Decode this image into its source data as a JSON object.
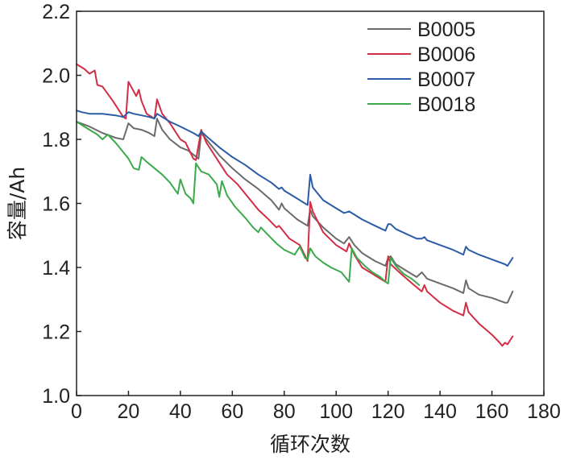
{
  "chart_data": {
    "type": "line",
    "xlabel": "循环次数",
    "ylabel": "容量/Ah",
    "xlim": [
      0,
      180
    ],
    "ylim": [
      1.0,
      2.2
    ],
    "xticks": [
      "0",
      "20",
      "40",
      "60",
      "80",
      "100",
      "120",
      "140",
      "160",
      "180"
    ],
    "yticks": [
      "1.0",
      "1.2",
      "1.4",
      "1.6",
      "1.8",
      "2.0",
      "2.2"
    ],
    "grid": false,
    "legend_position": "top-right",
    "series": [
      {
        "name": "B0005",
        "color": "#6b6b6b",
        "points": [
          [
            0,
            1.855
          ],
          [
            5,
            1.84
          ],
          [
            10,
            1.82
          ],
          [
            15,
            1.805
          ],
          [
            18,
            1.8
          ],
          [
            20,
            1.85
          ],
          [
            22,
            1.835
          ],
          [
            25,
            1.83
          ],
          [
            28,
            1.82
          ],
          [
            30,
            1.81
          ],
          [
            31,
            1.865
          ],
          [
            33,
            1.83
          ],
          [
            36,
            1.8
          ],
          [
            40,
            1.775
          ],
          [
            43,
            1.765
          ],
          [
            47,
            1.74
          ],
          [
            48,
            1.82
          ],
          [
            50,
            1.8
          ],
          [
            55,
            1.75
          ],
          [
            60,
            1.71
          ],
          [
            65,
            1.675
          ],
          [
            70,
            1.645
          ],
          [
            75,
            1.61
          ],
          [
            78,
            1.58
          ],
          [
            79,
            1.6
          ],
          [
            80,
            1.585
          ],
          [
            85,
            1.55
          ],
          [
            89,
            1.53
          ],
          [
            90,
            1.58
          ],
          [
            91,
            1.56
          ],
          [
            95,
            1.525
          ],
          [
            100,
            1.49
          ],
          [
            103,
            1.475
          ],
          [
            105,
            1.495
          ],
          [
            107,
            1.47
          ],
          [
            110,
            1.445
          ],
          [
            115,
            1.42
          ],
          [
            119,
            1.405
          ],
          [
            120,
            1.43
          ],
          [
            121,
            1.435
          ],
          [
            123,
            1.41
          ],
          [
            127,
            1.39
          ],
          [
            131,
            1.37
          ],
          [
            133,
            1.385
          ],
          [
            135,
            1.365
          ],
          [
            140,
            1.35
          ],
          [
            145,
            1.335
          ],
          [
            149,
            1.32
          ],
          [
            150,
            1.36
          ],
          [
            151,
            1.335
          ],
          [
            155,
            1.315
          ],
          [
            160,
            1.305
          ],
          [
            165,
            1.29
          ],
          [
            166,
            1.29
          ],
          [
            168,
            1.325
          ]
        ]
      },
      {
        "name": "B0006",
        "color": "#d12e45",
        "points": [
          [
            0,
            2.035
          ],
          [
            3,
            2.02
          ],
          [
            5,
            2.005
          ],
          [
            7,
            2.015
          ],
          [
            8,
            1.97
          ],
          [
            10,
            1.965
          ],
          [
            14,
            1.92
          ],
          [
            18,
            1.87
          ],
          [
            19,
            1.865
          ],
          [
            20,
            1.98
          ],
          [
            22,
            1.95
          ],
          [
            23,
            1.935
          ],
          [
            24,
            1.955
          ],
          [
            25,
            1.92
          ],
          [
            27,
            1.88
          ],
          [
            30,
            1.865
          ],
          [
            31,
            1.925
          ],
          [
            33,
            1.88
          ],
          [
            36,
            1.85
          ],
          [
            40,
            1.8
          ],
          [
            42,
            1.79
          ],
          [
            45,
            1.74
          ],
          [
            46,
            1.735
          ],
          [
            48,
            1.83
          ],
          [
            50,
            1.79
          ],
          [
            54,
            1.74
          ],
          [
            58,
            1.69
          ],
          [
            62,
            1.66
          ],
          [
            66,
            1.62
          ],
          [
            70,
            1.58
          ],
          [
            74,
            1.55
          ],
          [
            77,
            1.525
          ],
          [
            78,
            1.53
          ],
          [
            79,
            1.52
          ],
          [
            82,
            1.49
          ],
          [
            86,
            1.47
          ],
          [
            89,
            1.42
          ],
          [
            90,
            1.605
          ],
          [
            91,
            1.575
          ],
          [
            95,
            1.51
          ],
          [
            100,
            1.47
          ],
          [
            104,
            1.45
          ],
          [
            105,
            1.475
          ],
          [
            107,
            1.44
          ],
          [
            110,
            1.4
          ],
          [
            115,
            1.375
          ],
          [
            119,
            1.355
          ],
          [
            120,
            1.435
          ],
          [
            121,
            1.41
          ],
          [
            125,
            1.38
          ],
          [
            130,
            1.345
          ],
          [
            133,
            1.325
          ],
          [
            134,
            1.345
          ],
          [
            135,
            1.325
          ],
          [
            140,
            1.29
          ],
          [
            145,
            1.265
          ],
          [
            149,
            1.25
          ],
          [
            150,
            1.29
          ],
          [
            151,
            1.26
          ],
          [
            155,
            1.225
          ],
          [
            160,
            1.19
          ],
          [
            163,
            1.165
          ],
          [
            164,
            1.155
          ],
          [
            165,
            1.165
          ],
          [
            166,
            1.16
          ],
          [
            168,
            1.185
          ]
        ]
      },
      {
        "name": "B0007",
        "color": "#2c5ba7",
        "points": [
          [
            0,
            1.89
          ],
          [
            2,
            1.885
          ],
          [
            5,
            1.88
          ],
          [
            10,
            1.88
          ],
          [
            15,
            1.875
          ],
          [
            18,
            1.87
          ],
          [
            20,
            1.885
          ],
          [
            22,
            1.88
          ],
          [
            25,
            1.875
          ],
          [
            28,
            1.87
          ],
          [
            30,
            1.865
          ],
          [
            31,
            1.88
          ],
          [
            33,
            1.87
          ],
          [
            36,
            1.855
          ],
          [
            40,
            1.84
          ],
          [
            45,
            1.82
          ],
          [
            47,
            1.81
          ],
          [
            48,
            1.825
          ],
          [
            50,
            1.81
          ],
          [
            55,
            1.775
          ],
          [
            60,
            1.745
          ],
          [
            65,
            1.72
          ],
          [
            70,
            1.69
          ],
          [
            75,
            1.665
          ],
          [
            78,
            1.645
          ],
          [
            79,
            1.65
          ],
          [
            80,
            1.64
          ],
          [
            85,
            1.615
          ],
          [
            89,
            1.595
          ],
          [
            90,
            1.69
          ],
          [
            91,
            1.65
          ],
          [
            95,
            1.61
          ],
          [
            100,
            1.585
          ],
          [
            103,
            1.57
          ],
          [
            105,
            1.575
          ],
          [
            107,
            1.565
          ],
          [
            110,
            1.55
          ],
          [
            115,
            1.53
          ],
          [
            119,
            1.515
          ],
          [
            120,
            1.535
          ],
          [
            121,
            1.535
          ],
          [
            123,
            1.52
          ],
          [
            127,
            1.505
          ],
          [
            131,
            1.49
          ],
          [
            133,
            1.49
          ],
          [
            134,
            1.495
          ],
          [
            135,
            1.485
          ],
          [
            140,
            1.47
          ],
          [
            145,
            1.455
          ],
          [
            149,
            1.44
          ],
          [
            150,
            1.465
          ],
          [
            151,
            1.455
          ],
          [
            155,
            1.44
          ],
          [
            160,
            1.425
          ],
          [
            165,
            1.41
          ],
          [
            166,
            1.405
          ],
          [
            168,
            1.43
          ]
        ]
      },
      {
        "name": "B0018",
        "color": "#3aaa4b",
        "points": [
          [
            0,
            1.855
          ],
          [
            3,
            1.84
          ],
          [
            5,
            1.83
          ],
          [
            8,
            1.815
          ],
          [
            10,
            1.8
          ],
          [
            12,
            1.815
          ],
          [
            15,
            1.79
          ],
          [
            18,
            1.76
          ],
          [
            20,
            1.74
          ],
          [
            22,
            1.71
          ],
          [
            24,
            1.705
          ],
          [
            25,
            1.745
          ],
          [
            27,
            1.73
          ],
          [
            30,
            1.71
          ],
          [
            33,
            1.69
          ],
          [
            36,
            1.665
          ],
          [
            39,
            1.63
          ],
          [
            40,
            1.675
          ],
          [
            42,
            1.63
          ],
          [
            44,
            1.615
          ],
          [
            45,
            1.6
          ],
          [
            46,
            1.725
          ],
          [
            48,
            1.7
          ],
          [
            51,
            1.69
          ],
          [
            54,
            1.66
          ],
          [
            55,
            1.62
          ],
          [
            56,
            1.67
          ],
          [
            58,
            1.625
          ],
          [
            61,
            1.59
          ],
          [
            65,
            1.555
          ],
          [
            68,
            1.525
          ],
          [
            70,
            1.51
          ],
          [
            71,
            1.525
          ],
          [
            74,
            1.5
          ],
          [
            77,
            1.475
          ],
          [
            80,
            1.455
          ],
          [
            84,
            1.44
          ],
          [
            86,
            1.465
          ],
          [
            88,
            1.43
          ],
          [
            89,
            1.425
          ],
          [
            90,
            1.46
          ],
          [
            92,
            1.435
          ],
          [
            95,
            1.415
          ],
          [
            98,
            1.4
          ],
          [
            102,
            1.385
          ],
          [
            104,
            1.365
          ],
          [
            105,
            1.355
          ],
          [
            106,
            1.46
          ],
          [
            108,
            1.43
          ],
          [
            111,
            1.405
          ],
          [
            114,
            1.385
          ],
          [
            117,
            1.37
          ],
          [
            119,
            1.355
          ],
          [
            120,
            1.35
          ],
          [
            121,
            1.43
          ],
          [
            123,
            1.405
          ],
          [
            126,
            1.38
          ],
          [
            129,
            1.365
          ],
          [
            132,
            1.345
          ]
        ]
      }
    ]
  }
}
